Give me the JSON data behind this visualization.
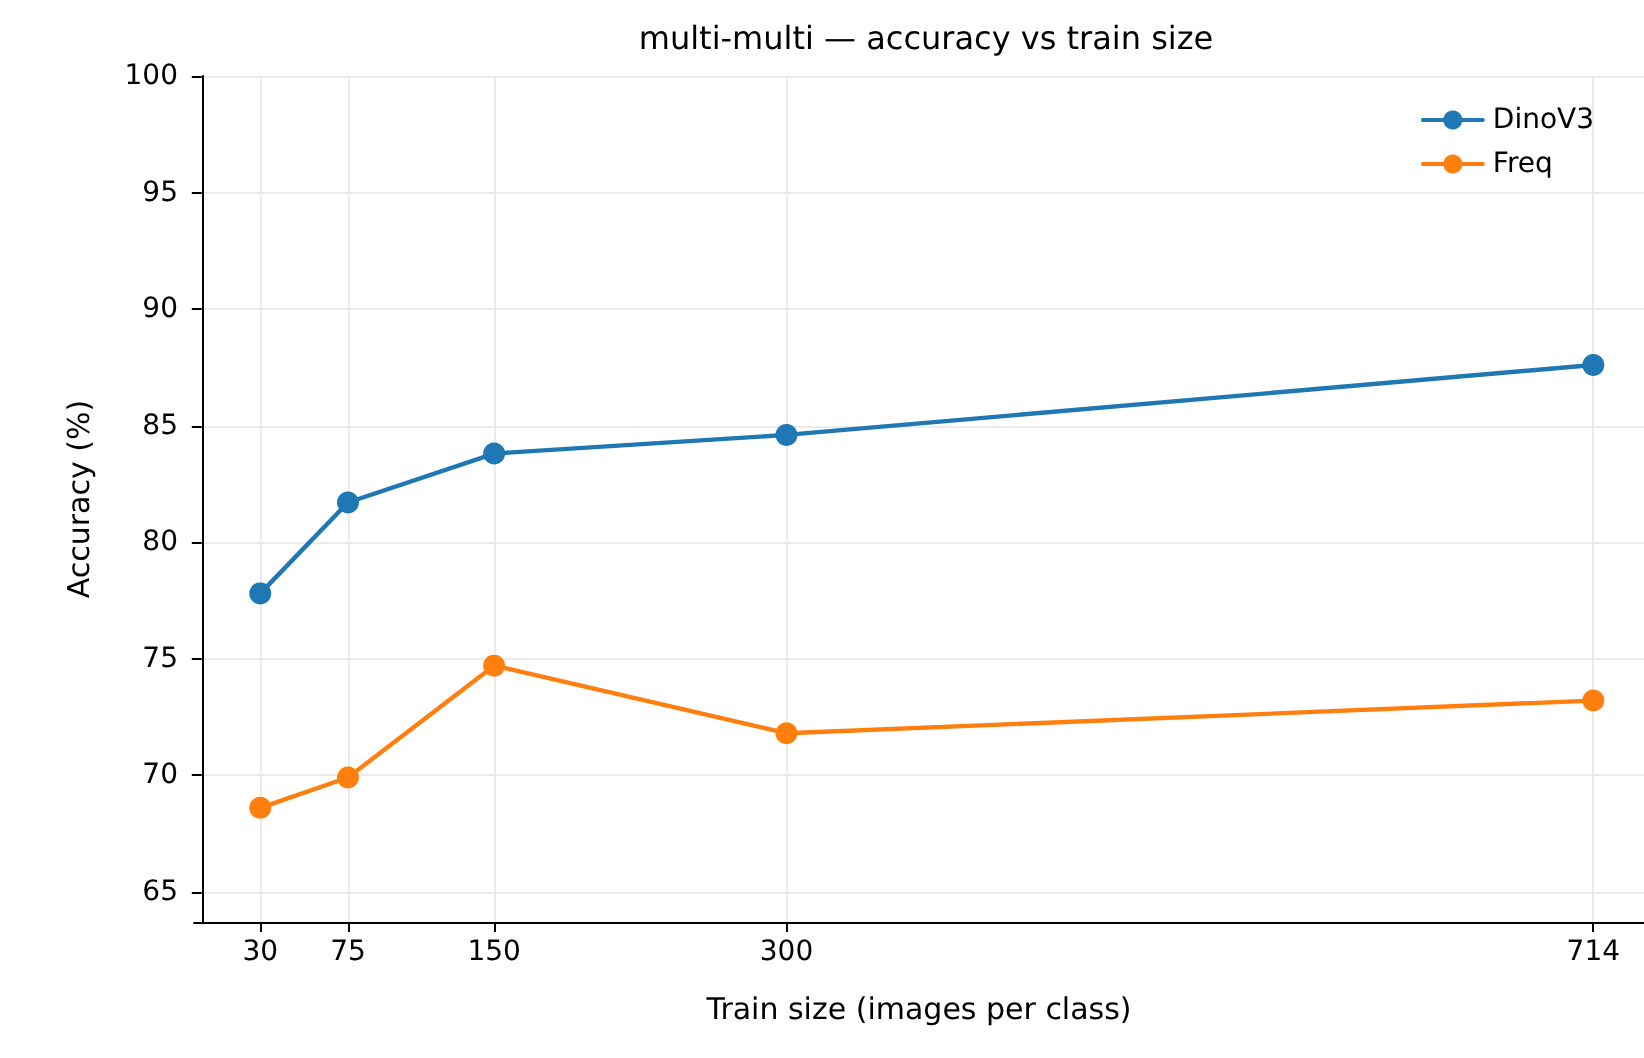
{
  "chart_data": {
    "type": "line",
    "title": "multi-multi — accuracy vs train size",
    "xlabel": "Train size (images per class)",
    "ylabel": "Accuracy (%)",
    "x": [
      30,
      75,
      150,
      300,
      714
    ],
    "series": [
      {
        "name": "DinoV3",
        "color": "#1f77b4",
        "values": [
          77.8,
          81.7,
          83.8,
          84.6,
          87.6
        ]
      },
      {
        "name": "Freq",
        "color": "#ff7f0e",
        "values": [
          68.6,
          69.9,
          74.7,
          71.8,
          73.2
        ]
      }
    ],
    "xlim": [
      -4,
      740
    ],
    "xticks": [
      30,
      75,
      150,
      300,
      714
    ],
    "ylim": [
      63.7,
      100
    ],
    "yticks": [
      65,
      70,
      75,
      80,
      85,
      90,
      95,
      100
    ],
    "grid": true,
    "legend": "top right",
    "marker": "circle",
    "line_style": "solid"
  }
}
